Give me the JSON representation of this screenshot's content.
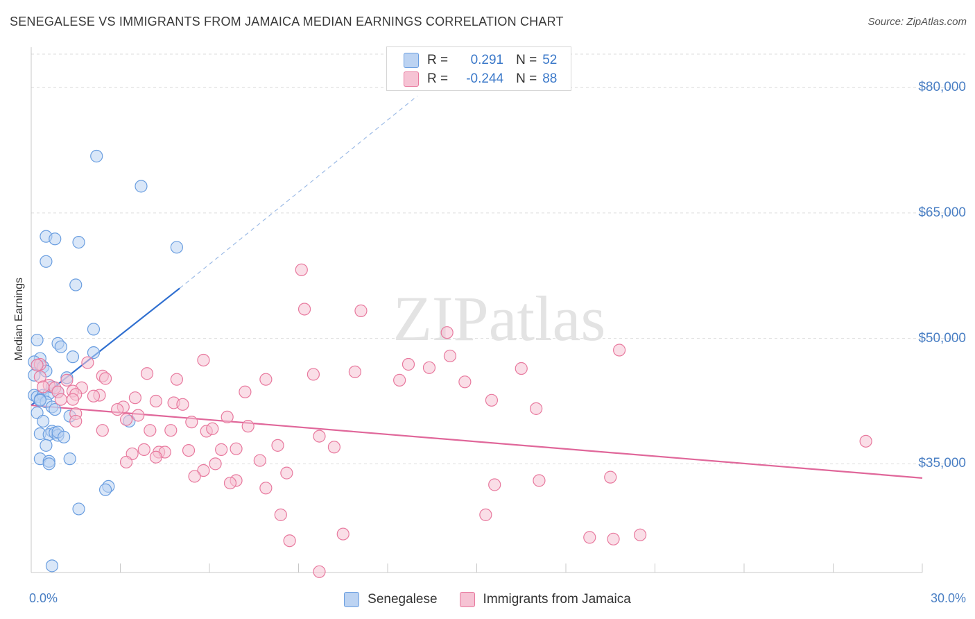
{
  "chart_data": {
    "type": "scatter",
    "title": "SENEGALESE VS IMMIGRANTS FROM JAMAICA MEDIAN EARNINGS CORRELATION CHART",
    "source": "Source: ZipAtlas.com",
    "xlabel": "",
    "ylabel": "Median Earnings",
    "xlim": [
      0,
      30
    ],
    "ylim": [
      22000,
      84000
    ],
    "x_tick_labels": [
      "0.0%",
      "30.0%"
    ],
    "y_ticks": [
      {
        "value": 35000,
        "label": "$35,000"
      },
      {
        "value": 50000,
        "label": "$50,000"
      },
      {
        "value": 65000,
        "label": "$65,000"
      },
      {
        "value": 80000,
        "label": "$80,000"
      }
    ],
    "watermark": "ZIPatlas",
    "legend": [
      {
        "label": "R =",
        "r": "0.291",
        "n_label": "N =",
        "n": "52"
      },
      {
        "label": "R =",
        "r": "-0.244",
        "n_label": "N =",
        "n": "88"
      }
    ],
    "series": [
      {
        "name": "Senegalese",
        "color": "#6a9ee0",
        "fill": "#bcd3f2",
        "trend": {
          "x": [
            0.0,
            5.0
          ],
          "y": [
            42000,
            56000
          ],
          "dash_to": [
            13.0,
            79000
          ]
        },
        "points": [
          [
            2.2,
            71800
          ],
          [
            3.7,
            68200
          ],
          [
            0.5,
            62200
          ],
          [
            0.8,
            61900
          ],
          [
            1.6,
            61500
          ],
          [
            4.9,
            60900
          ],
          [
            0.5,
            59200
          ],
          [
            1.5,
            56400
          ],
          [
            2.1,
            51100
          ],
          [
            0.2,
            49800
          ],
          [
            0.9,
            49400
          ],
          [
            1.0,
            49000
          ],
          [
            2.1,
            48300
          ],
          [
            1.4,
            47800
          ],
          [
            0.3,
            47600
          ],
          [
            0.1,
            47200
          ],
          [
            0.2,
            46800
          ],
          [
            0.4,
            46600
          ],
          [
            0.5,
            46100
          ],
          [
            0.1,
            45600
          ],
          [
            1.2,
            45300
          ],
          [
            0.1,
            43200
          ],
          [
            0.2,
            43000
          ],
          [
            0.4,
            43200
          ],
          [
            0.6,
            43400
          ],
          [
            0.7,
            44200
          ],
          [
            0.3,
            42700
          ],
          [
            0.5,
            42400
          ],
          [
            0.7,
            41800
          ],
          [
            0.8,
            41500
          ],
          [
            0.2,
            41100
          ],
          [
            1.3,
            40700
          ],
          [
            3.3,
            40100
          ],
          [
            0.4,
            40100
          ],
          [
            0.7,
            38900
          ],
          [
            0.3,
            38600
          ],
          [
            0.6,
            38500
          ],
          [
            0.8,
            38700
          ],
          [
            0.9,
            38400
          ],
          [
            0.9,
            38800
          ],
          [
            1.1,
            38200
          ],
          [
            0.5,
            37200
          ],
          [
            0.3,
            35600
          ],
          [
            0.6,
            35300
          ],
          [
            0.6,
            35000
          ],
          [
            1.3,
            35600
          ],
          [
            2.6,
            32300
          ],
          [
            2.5,
            31900
          ],
          [
            1.6,
            29600
          ],
          [
            0.7,
            22800
          ],
          [
            0.3,
            42600
          ],
          [
            0.9,
            43600
          ]
        ]
      },
      {
        "name": "Immigrants from Jamaica",
        "color": "#e8799e",
        "fill": "#f6c3d4",
        "trend": {
          "x": [
            0.0,
            30.0
          ],
          "y": [
            42000,
            33300
          ]
        },
        "points": [
          [
            9.1,
            58200
          ],
          [
            9.2,
            53500
          ],
          [
            11.1,
            53300
          ],
          [
            14.0,
            50700
          ],
          [
            19.8,
            48600
          ],
          [
            14.1,
            47900
          ],
          [
            5.8,
            47400
          ],
          [
            12.7,
            46900
          ],
          [
            1.9,
            47100
          ],
          [
            0.3,
            46900
          ],
          [
            13.4,
            46500
          ],
          [
            16.5,
            46400
          ],
          [
            3.9,
            45800
          ],
          [
            9.5,
            45700
          ],
          [
            10.9,
            46000
          ],
          [
            0.3,
            45400
          ],
          [
            2.4,
            45500
          ],
          [
            1.2,
            45000
          ],
          [
            2.5,
            45200
          ],
          [
            4.9,
            45100
          ],
          [
            7.9,
            45100
          ],
          [
            12.4,
            45000
          ],
          [
            14.6,
            44800
          ],
          [
            0.6,
            44400
          ],
          [
            0.4,
            44200
          ],
          [
            0.8,
            44100
          ],
          [
            1.7,
            44100
          ],
          [
            1.4,
            43700
          ],
          [
            7.2,
            43600
          ],
          [
            0.9,
            43600
          ],
          [
            1.5,
            43300
          ],
          [
            2.3,
            43200
          ],
          [
            2.1,
            43100
          ],
          [
            1.0,
            42700
          ],
          [
            1.4,
            42700
          ],
          [
            3.5,
            42900
          ],
          [
            4.2,
            42500
          ],
          [
            4.8,
            42300
          ],
          [
            5.1,
            42100
          ],
          [
            15.5,
            42600
          ],
          [
            3.1,
            41800
          ],
          [
            2.9,
            41500
          ],
          [
            17.0,
            41600
          ],
          [
            1.5,
            41000
          ],
          [
            3.6,
            40800
          ],
          [
            6.6,
            40600
          ],
          [
            3.2,
            40300
          ],
          [
            1.5,
            40100
          ],
          [
            5.4,
            40000
          ],
          [
            7.3,
            39500
          ],
          [
            4.0,
            39000
          ],
          [
            2.4,
            39000
          ],
          [
            4.7,
            39000
          ],
          [
            5.9,
            38900
          ],
          [
            6.1,
            39200
          ],
          [
            9.7,
            38300
          ],
          [
            8.3,
            37200
          ],
          [
            10.2,
            37000
          ],
          [
            28.1,
            37700
          ],
          [
            3.8,
            36700
          ],
          [
            6.4,
            36700
          ],
          [
            6.9,
            36800
          ],
          [
            5.3,
            36600
          ],
          [
            4.3,
            36400
          ],
          [
            4.5,
            36400
          ],
          [
            3.4,
            36200
          ],
          [
            4.2,
            35800
          ],
          [
            7.7,
            35400
          ],
          [
            3.2,
            35200
          ],
          [
            6.2,
            35000
          ],
          [
            5.8,
            34200
          ],
          [
            8.6,
            33900
          ],
          [
            5.5,
            33500
          ],
          [
            19.5,
            33400
          ],
          [
            6.9,
            33000
          ],
          [
            6.7,
            32700
          ],
          [
            17.1,
            33000
          ],
          [
            15.6,
            32500
          ],
          [
            7.9,
            32100
          ],
          [
            8.4,
            28900
          ],
          [
            15.3,
            28900
          ],
          [
            10.5,
            26600
          ],
          [
            8.7,
            25800
          ],
          [
            18.8,
            26200
          ],
          [
            19.6,
            26000
          ],
          [
            20.5,
            26500
          ],
          [
            9.7,
            22100
          ],
          [
            0.2,
            46800
          ]
        ]
      }
    ]
  },
  "legend_box": {
    "rows": [
      {
        "r_label": "R =",
        "r_value": "0.291",
        "n_label": "N =",
        "n_value": "52"
      },
      {
        "r_label": "R =",
        "r_value": "-0.244",
        "n_label": "N =",
        "n_value": "88"
      }
    ]
  },
  "bottom_legend": [
    "Senegalese",
    "Immigrants from Jamaica"
  ]
}
